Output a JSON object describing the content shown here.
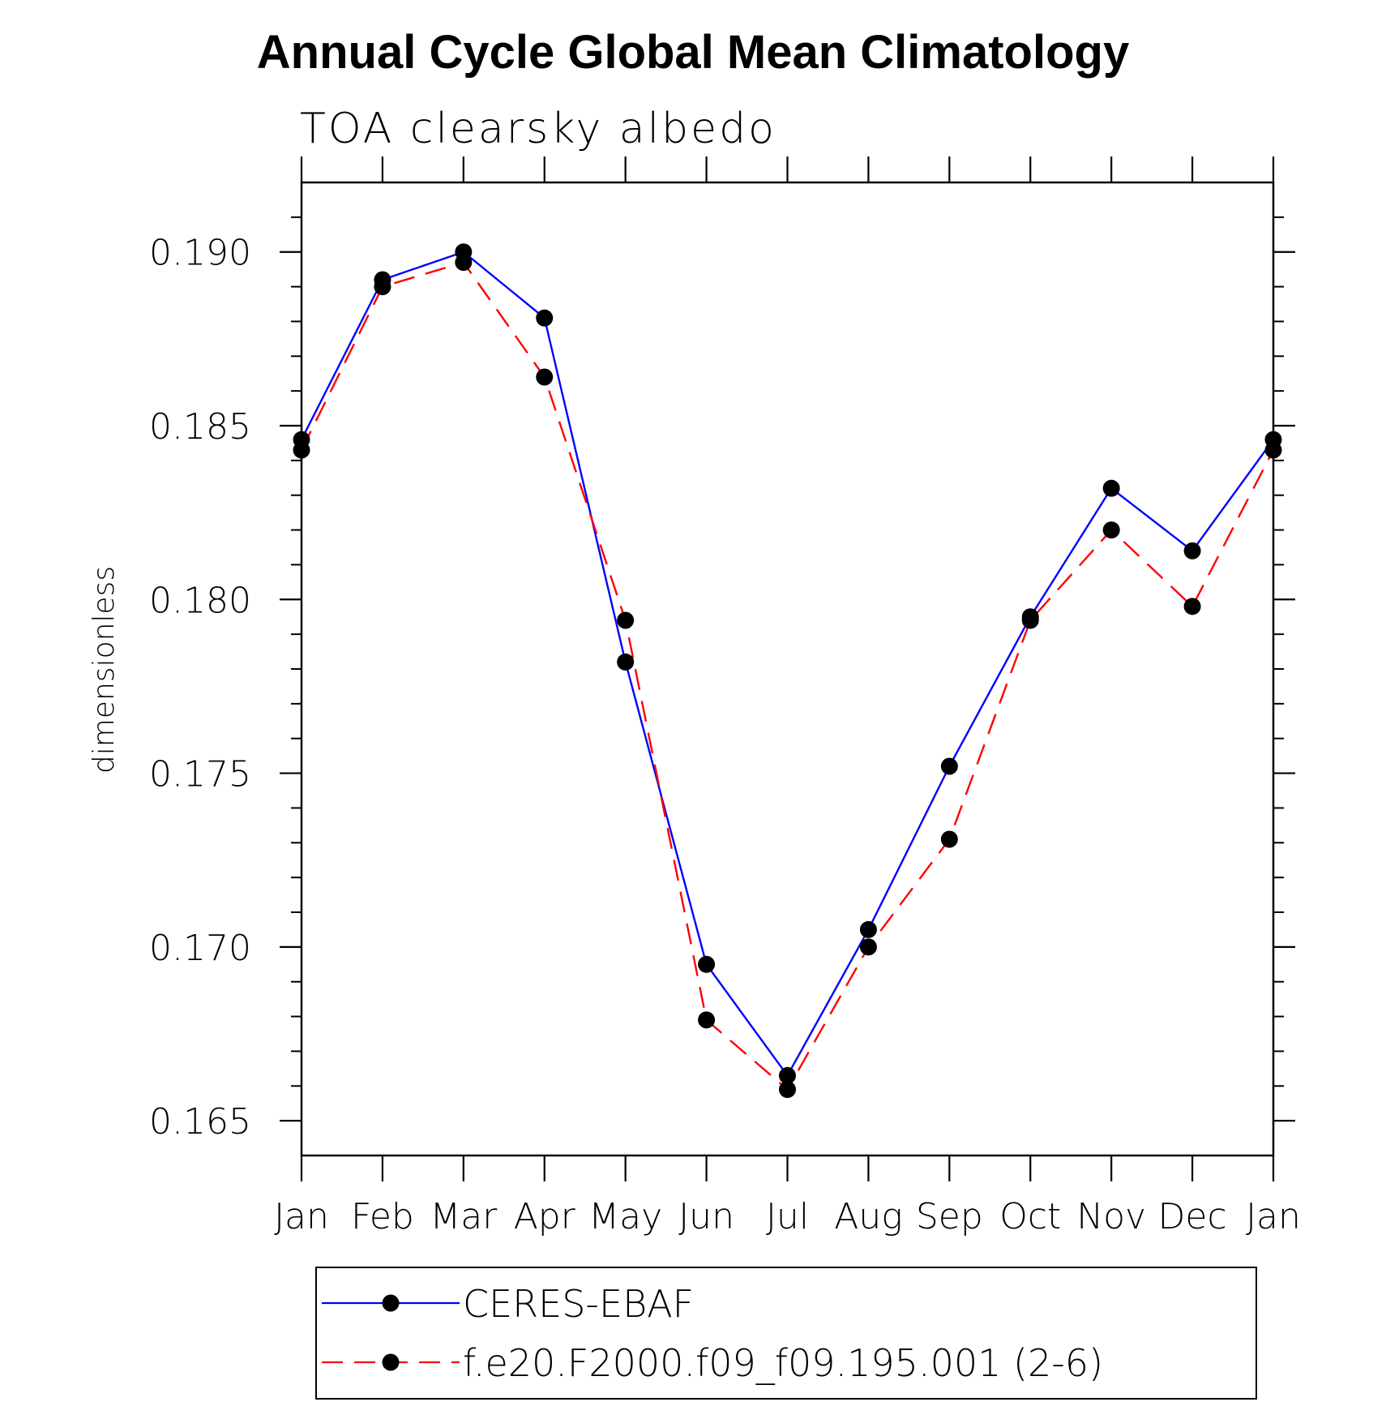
{
  "chart_data": {
    "type": "line",
    "title": "Annual Cycle Global Mean Climatology",
    "subtitle": "TOA clearsky albedo",
    "xlabel": "",
    "ylabel": "dimensionless",
    "categories": [
      "Jan",
      "Feb",
      "Mar",
      "Apr",
      "May",
      "Jun",
      "Jul",
      "Aug",
      "Sep",
      "Oct",
      "Nov",
      "Dec",
      "Jan"
    ],
    "ylim": [
      0.164,
      0.192
    ],
    "yticks": [
      0.165,
      0.17,
      0.175,
      0.18,
      0.185,
      0.19
    ],
    "ytick_labels": [
      "0.165",
      "0.170",
      "0.175",
      "0.180",
      "0.185",
      "0.190"
    ],
    "y_minor_step": 0.001,
    "grid": false,
    "legend_position": "bottom",
    "series": [
      {
        "name": "CERES-EBAF",
        "color": "#0000ff",
        "dash": "solid",
        "marker": "filled-circle",
        "values": [
          0.1846,
          0.1892,
          0.19,
          0.1881,
          0.1782,
          0.1695,
          0.1663,
          0.1705,
          0.1752,
          0.1795,
          0.1832,
          0.1814,
          0.1846
        ]
      },
      {
        "name": "f.e20.F2000.f09_f09.195.001 (2-6)",
        "color": "#ff0000",
        "dash": "dashed",
        "marker": "filled-circle",
        "values": [
          0.1843,
          0.189,
          0.1897,
          0.1864,
          0.1794,
          0.1679,
          0.1659,
          0.17,
          0.1731,
          0.1794,
          0.182,
          0.1798,
          0.1843
        ]
      }
    ]
  }
}
